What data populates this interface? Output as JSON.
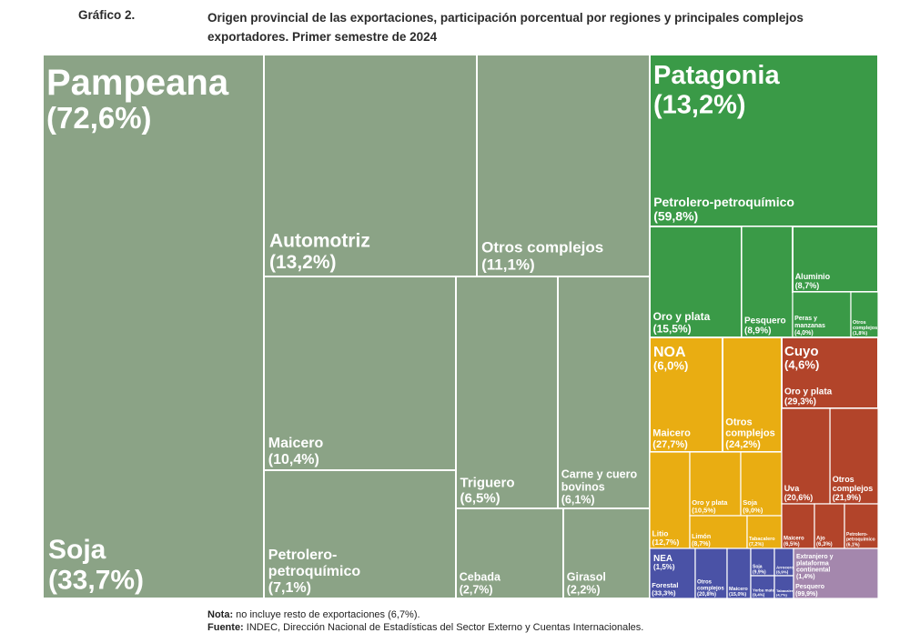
{
  "header": {
    "figure_label": "Gráfico 2.",
    "title": "Origen provincial de las exportaciones, participación porcentual por regiones y principales complejos exportadores. Primer semestre de 2024"
  },
  "footer": {
    "note_label": "Nota:",
    "note_text": "no incluye resto de exportaciones (6,7%).",
    "source_label": "Fuente:",
    "source_text": "INDEC, Dirección Nacional de Estadísticas del Sector Externo y Cuentas Internacionales."
  },
  "colors": {
    "Pampeana": "#8ba386",
    "Patagonia": "#3a9a47",
    "NOA": "#e9ad12",
    "Cuyo": "#b2442a",
    "NEA": "#4a52a6",
    "Extranjero": "#a487ad",
    "border": "#ffffff"
  },
  "chart_data": {
    "type": "treemap",
    "title": "Origen provincial de las exportaciones, participación porcentual por regiones y principales complejos exportadores. Primer semestre de 2024",
    "regions": [
      {
        "name": "Pampeana",
        "label": "Pampeana",
        "share_label": "(72,6%)",
        "share": 72.6,
        "complexes": [
          {
            "name": "Soja",
            "label": "Soja",
            "share_label": "(33,7%)",
            "share": 33.7
          },
          {
            "name": "Automotriz",
            "label": "Automotriz",
            "share_label": "(13,2%)",
            "share": 13.2
          },
          {
            "name": "Otros complejos",
            "label": "Otros complejos",
            "share_label": "(11,1%)",
            "share": 11.1
          },
          {
            "name": "Maicero",
            "label": "Maicero",
            "share_label": "(10,4%)",
            "share": 10.4
          },
          {
            "name": "Petrolero-petroquímico",
            "label": "Petrolero-\npetroquímico",
            "share_label": "(7,1%)",
            "share": 7.1
          },
          {
            "name": "Triguero",
            "label": "Triguero",
            "share_label": "(6,5%)",
            "share": 6.5
          },
          {
            "name": "Carne y cuero bovinos",
            "label": "Carne y cuero\nbovinos",
            "share_label": "(6,1%)",
            "share": 6.1
          },
          {
            "name": "Cebada",
            "label": "Cebada",
            "share_label": "(2,7%)",
            "share": 2.7
          },
          {
            "name": "Girasol",
            "label": "Girasol",
            "share_label": "(2,2%)",
            "share": 2.2
          }
        ]
      },
      {
        "name": "Patagonia",
        "label": "Patagonia",
        "share_label": "(13,2%)",
        "share": 13.2,
        "complexes": [
          {
            "name": "Petrolero-petroquímico",
            "label": "Petrolero-petroquímico",
            "share_label": "(59,8%)",
            "share": 59.8
          },
          {
            "name": "Oro y plata",
            "label": "Oro y plata",
            "share_label": "(15,5%)",
            "share": 15.5
          },
          {
            "name": "Pesquero",
            "label": "Pesquero",
            "share_label": "(8,9%)",
            "share": 8.9
          },
          {
            "name": "Aluminio",
            "label": "Aluminio",
            "share_label": "(8,7%)",
            "share": 8.7
          },
          {
            "name": "Peras y manzanas",
            "label": "Peras y\nmanzanas",
            "share_label": "(4,0%)",
            "share": 4.0
          },
          {
            "name": "Otros complejos",
            "label": "Otros\ncomplejos",
            "share_label": "(1,8%)",
            "share": 1.8
          }
        ]
      },
      {
        "name": "NOA",
        "label": "NOA",
        "share_label": "(6,0%)",
        "share": 6.0,
        "complexes": [
          {
            "name": "Maicero",
            "label": "Maicero",
            "share_label": "(27,7%)",
            "share": 27.7
          },
          {
            "name": "Otros complejos",
            "label": "Otros\ncomplejos",
            "share_label": "(24,2%)",
            "share": 24.2
          },
          {
            "name": "Litio",
            "label": "Litio",
            "share_label": "(12,7%)",
            "share": 12.7
          },
          {
            "name": "Oro y plata",
            "label": "Oro y plata",
            "share_label": "(10,5%)",
            "share": 10.5
          },
          {
            "name": "Soja",
            "label": "Soja",
            "share_label": "(9,0%)",
            "share": 9.0
          },
          {
            "name": "Limón",
            "label": "Limón",
            "share_label": "(8,7%)",
            "share": 8.7
          },
          {
            "name": "Tabacalero",
            "label": "Tabacalero",
            "share_label": "(7,2%)",
            "share": 7.2
          }
        ]
      },
      {
        "name": "Cuyo",
        "label": "Cuyo",
        "share_label": "(4,6%)",
        "share": 4.6,
        "complexes": [
          {
            "name": "Oro y plata",
            "label": "Oro y plata",
            "share_label": "(29,3%)",
            "share": 29.3
          },
          {
            "name": "Otros complejos",
            "label": "Otros\ncomplejos",
            "share_label": "(21,9%)",
            "share": 21.9
          },
          {
            "name": "Uva",
            "label": "Uva",
            "share_label": "(20,6%)",
            "share": 20.6
          },
          {
            "name": "Maicero",
            "label": "Maicero",
            "share_label": "(6,5%)",
            "share": 6.5
          },
          {
            "name": "Ajo",
            "label": "Ajo",
            "share_label": "(6,3%)",
            "share": 6.3
          },
          {
            "name": "Petrolero-petroquímico",
            "label": "Petrolero-\npetroquímico",
            "share_label": "(6,1%)",
            "share": 6.1
          }
        ]
      },
      {
        "name": "NEA",
        "label": "NEA",
        "share_label": "(1,5%)",
        "share": 1.5,
        "complexes": [
          {
            "name": "Forestal",
            "label": "Forestal",
            "share_label": "(33,3%)",
            "share": 33.3
          },
          {
            "name": "Otros complejos",
            "label": "Otros\ncomplejos",
            "share_label": "(20,8%)",
            "share": 20.8
          },
          {
            "name": "Maicero",
            "label": "Maicero",
            "share_label": "(15,0%)",
            "share": 15.0
          },
          {
            "name": "Soja",
            "label": "Soja",
            "share_label": "(9,9%)",
            "share": 9.9
          },
          {
            "name": "Yerba mate",
            "label": "Yerba mate",
            "share_label": "(9,4%)",
            "share": 9.4
          },
          {
            "name": "Arrocero",
            "label": "Arrocero",
            "share_label": "(6,9%)",
            "share": 6.9
          },
          {
            "name": "Tabacalero",
            "label": "Tabacalero",
            "share_label": "(4,7%)",
            "share": 4.7
          }
        ]
      },
      {
        "name": "Extranjero y plataforma continental",
        "label": "Extranjero y\nplataforma\ncontinental",
        "share_label": "(1,4%)",
        "share": 1.4,
        "complexes": [
          {
            "name": "Pesquero",
            "label": "Pesquero",
            "share_label": "(99,9%)",
            "share": 99.9
          }
        ]
      }
    ]
  }
}
